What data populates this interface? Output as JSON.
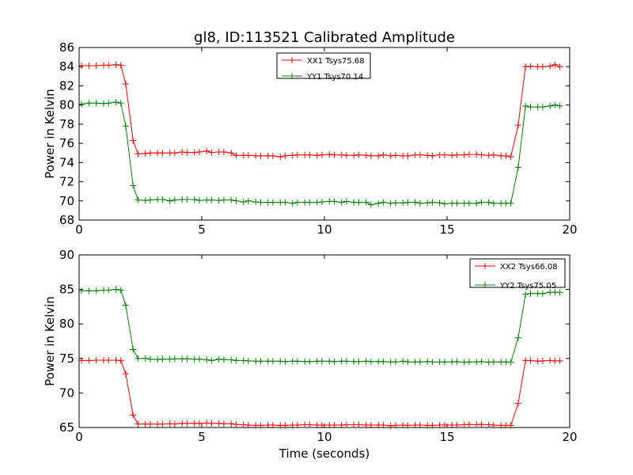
{
  "figure": {
    "title": "gl8, ID:113521 Calibrated Amplitude",
    "xlabel": "Time (seconds)"
  },
  "chart_data": [
    {
      "type": "line",
      "ylabel": "Power in Kelvin",
      "xlim": [
        0,
        20
      ],
      "ylim": [
        68,
        86
      ],
      "xticks": [
        "0",
        "5",
        "10",
        "15",
        "20"
      ],
      "yticks": [
        "68",
        "70",
        "72",
        "74",
        "76",
        "78",
        "80",
        "82",
        "84",
        "86"
      ],
      "legend_position": "top-center",
      "x": [
        0.1,
        0.4,
        0.7,
        1.0,
        1.2,
        1.5,
        1.7,
        1.9,
        2.2,
        2.4,
        2.7,
        2.9,
        3.2,
        3.4,
        3.7,
        3.9,
        4.2,
        4.4,
        4.7,
        4.9,
        5.2,
        5.4,
        5.7,
        5.9,
        6.2,
        6.4,
        6.7,
        6.9,
        7.2,
        7.4,
        7.7,
        7.9,
        8.2,
        8.4,
        8.7,
        8.9,
        9.2,
        9.4,
        9.7,
        9.9,
        10.2,
        10.4,
        10.7,
        10.9,
        11.2,
        11.4,
        11.7,
        11.9,
        12.2,
        12.4,
        12.7,
        12.9,
        13.2,
        13.4,
        13.7,
        13.9,
        14.2,
        14.4,
        14.7,
        14.9,
        15.2,
        15.4,
        15.7,
        15.9,
        16.2,
        16.4,
        16.7,
        16.9,
        17.2,
        17.4,
        17.6,
        17.9,
        18.2,
        18.4,
        18.7,
        18.9,
        19.2,
        19.4,
        19.6
      ],
      "series": [
        {
          "name": "XX1 Tsys75.68",
          "color": "#ff0000",
          "values": [
            84.1,
            84.1,
            84.1,
            84.15,
            84.15,
            84.2,
            84.15,
            82.2,
            76.3,
            74.9,
            74.95,
            75.0,
            75.0,
            75.0,
            75.0,
            75.0,
            75.1,
            75.05,
            75.05,
            75.1,
            75.2,
            75.05,
            75.1,
            75.1,
            75.0,
            74.75,
            74.75,
            74.75,
            74.7,
            74.7,
            74.7,
            74.7,
            74.6,
            74.7,
            74.75,
            74.8,
            74.8,
            74.8,
            74.75,
            74.8,
            74.85,
            74.8,
            74.8,
            74.75,
            74.75,
            74.8,
            74.75,
            74.7,
            74.7,
            74.8,
            74.7,
            74.75,
            74.7,
            74.7,
            74.8,
            74.8,
            74.75,
            74.7,
            74.8,
            74.8,
            74.75,
            74.8,
            74.8,
            74.85,
            74.85,
            74.8,
            74.75,
            74.8,
            74.7,
            74.7,
            74.6,
            77.9,
            84.0,
            84.05,
            84.0,
            84.0,
            84.05,
            84.2,
            84.0
          ]
        },
        {
          "name": "YY1 Tsys70.14",
          "color": "#008000",
          "values": [
            80.1,
            80.2,
            80.2,
            80.15,
            80.2,
            80.3,
            80.2,
            77.8,
            71.6,
            70.1,
            70.05,
            70.1,
            70.15,
            70.15,
            70.0,
            70.1,
            70.15,
            70.15,
            70.15,
            70.05,
            70.1,
            70.1,
            70.05,
            70.1,
            70.1,
            70.0,
            69.9,
            70.0,
            69.9,
            69.85,
            69.85,
            69.85,
            69.85,
            69.85,
            69.75,
            69.85,
            69.85,
            69.85,
            69.85,
            69.9,
            69.95,
            69.95,
            69.85,
            69.95,
            69.85,
            69.85,
            69.85,
            69.6,
            69.75,
            69.85,
            69.75,
            69.8,
            69.8,
            69.85,
            69.85,
            69.75,
            69.8,
            69.85,
            69.8,
            69.7,
            69.75,
            69.75,
            69.75,
            69.75,
            69.75,
            69.85,
            69.85,
            69.75,
            69.75,
            69.75,
            69.75,
            73.5,
            79.9,
            79.8,
            79.8,
            79.8,
            79.9,
            80.0,
            79.9
          ]
        }
      ]
    },
    {
      "type": "line",
      "ylabel": "Power in Kelvin",
      "xlim": [
        0,
        20
      ],
      "ylim": [
        65,
        90
      ],
      "xticks": [
        "0",
        "5",
        "10",
        "15",
        "20"
      ],
      "yticks": [
        "65",
        "70",
        "75",
        "80",
        "85",
        "90"
      ],
      "legend_position": "top-right",
      "x": [
        0.1,
        0.4,
        0.7,
        1.0,
        1.2,
        1.5,
        1.7,
        1.9,
        2.2,
        2.4,
        2.7,
        2.9,
        3.2,
        3.4,
        3.7,
        3.9,
        4.2,
        4.4,
        4.7,
        4.9,
        5.2,
        5.4,
        5.7,
        5.9,
        6.2,
        6.4,
        6.7,
        6.9,
        7.2,
        7.4,
        7.7,
        7.9,
        8.2,
        8.4,
        8.7,
        8.9,
        9.2,
        9.4,
        9.7,
        9.9,
        10.2,
        10.4,
        10.7,
        10.9,
        11.2,
        11.4,
        11.7,
        11.9,
        12.2,
        12.4,
        12.7,
        12.9,
        13.2,
        13.4,
        13.7,
        13.9,
        14.2,
        14.4,
        14.7,
        14.9,
        15.2,
        15.4,
        15.7,
        15.9,
        16.2,
        16.4,
        16.7,
        16.9,
        17.2,
        17.4,
        17.6,
        17.9,
        18.2,
        18.4,
        18.7,
        18.9,
        19.2,
        19.4,
        19.6
      ],
      "series": [
        {
          "name": "XX2 Tsys66.08",
          "color": "#ff0000",
          "values": [
            74.7,
            74.7,
            74.75,
            74.75,
            74.75,
            74.75,
            74.7,
            72.8,
            66.8,
            65.5,
            65.5,
            65.5,
            65.5,
            65.5,
            65.55,
            65.5,
            65.6,
            65.6,
            65.6,
            65.6,
            65.65,
            65.6,
            65.6,
            65.55,
            65.55,
            65.45,
            65.4,
            65.35,
            65.3,
            65.3,
            65.35,
            65.35,
            65.3,
            65.3,
            65.35,
            65.35,
            65.4,
            65.4,
            65.35,
            65.35,
            65.35,
            65.35,
            65.35,
            65.4,
            65.4,
            65.4,
            65.35,
            65.35,
            65.35,
            65.35,
            65.25,
            65.3,
            65.35,
            65.3,
            65.35,
            65.35,
            65.3,
            65.3,
            65.35,
            65.35,
            65.35,
            65.35,
            65.4,
            65.45,
            65.4,
            65.45,
            65.4,
            65.35,
            65.3,
            65.3,
            65.3,
            68.5,
            74.7,
            74.7,
            74.6,
            74.65,
            74.7,
            74.65,
            74.65
          ]
        },
        {
          "name": "YY2 Tsys75.05",
          "color": "#008000",
          "values": [
            84.8,
            84.8,
            84.8,
            84.9,
            84.9,
            85.0,
            84.9,
            82.7,
            76.3,
            75.0,
            75.0,
            74.9,
            74.85,
            74.9,
            74.9,
            74.95,
            74.95,
            74.95,
            74.9,
            74.9,
            74.8,
            74.7,
            74.9,
            74.85,
            74.8,
            74.7,
            74.7,
            74.65,
            74.6,
            74.6,
            74.6,
            74.6,
            74.6,
            74.55,
            74.6,
            74.6,
            74.55,
            74.55,
            74.6,
            74.6,
            74.6,
            74.55,
            74.6,
            74.6,
            74.55,
            74.55,
            74.6,
            74.55,
            74.55,
            74.55,
            74.5,
            74.5,
            74.6,
            74.5,
            74.5,
            74.5,
            74.55,
            74.5,
            74.5,
            74.5,
            74.5,
            74.55,
            74.45,
            74.5,
            74.5,
            74.55,
            74.45,
            74.5,
            74.5,
            74.5,
            74.45,
            78.0,
            84.3,
            84.4,
            84.4,
            84.4,
            84.6,
            84.6,
            84.55
          ]
        }
      ]
    }
  ]
}
